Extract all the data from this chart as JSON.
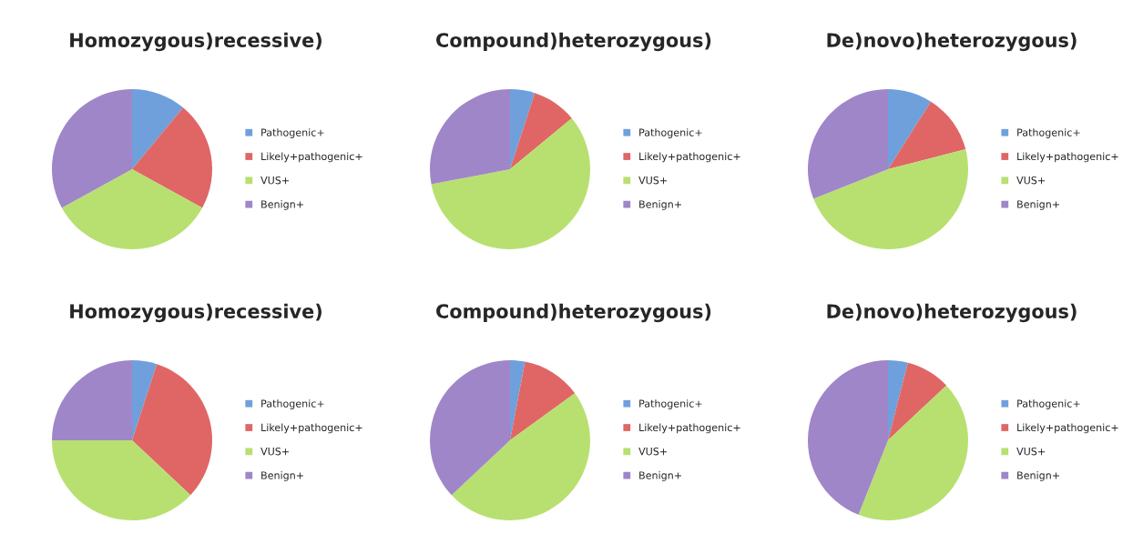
{
  "chart_data": [
    {
      "type": "pie",
      "title": "Homozygous)recessive)",
      "categories": [
        "Pathogenic+",
        "Likely+pathogenic+",
        "VUS+",
        "Benign+"
      ],
      "values": [
        11,
        22,
        34,
        33
      ],
      "colors": [
        "#6fa0dc",
        "#e06666",
        "#b8e070",
        "#9f86c8"
      ],
      "legend": "right"
    },
    {
      "type": "pie",
      "title": "Compound)heterozygous)",
      "categories": [
        "Pathogenic+",
        "Likely+pathogenic+",
        "VUS+",
        "Benign+"
      ],
      "values": [
        5,
        9,
        58,
        28
      ],
      "colors": [
        "#6fa0dc",
        "#e06666",
        "#b8e070",
        "#9f86c8"
      ],
      "legend": "right"
    },
    {
      "type": "pie",
      "title": "De)novo)heterozygous)",
      "categories": [
        "Pathogenic+",
        "Likely+pathogenic+",
        "VUS+",
        "Benign+"
      ],
      "values": [
        9,
        12,
        48,
        31
      ],
      "colors": [
        "#6fa0dc",
        "#e06666",
        "#b8e070",
        "#9f86c8"
      ],
      "legend": "right"
    },
    {
      "type": "pie",
      "title": "Homozygous)recessive)",
      "categories": [
        "Pathogenic+",
        "Likely+pathogenic+",
        "VUS+",
        "Benign+"
      ],
      "values": [
        5,
        32,
        38,
        25
      ],
      "colors": [
        "#6fa0dc",
        "#e06666",
        "#b8e070",
        "#9f86c8"
      ],
      "legend": "right"
    },
    {
      "type": "pie",
      "title": "Compound)heterozygous)",
      "categories": [
        "Pathogenic+",
        "Likely+pathogenic+",
        "VUS+",
        "Benign+"
      ],
      "values": [
        3,
        12,
        48,
        37
      ],
      "colors": [
        "#6fa0dc",
        "#e06666",
        "#b8e070",
        "#9f86c8"
      ],
      "legend": "right"
    },
    {
      "type": "pie",
      "title": "De)novo)heterozygous)",
      "categories": [
        "Pathogenic+",
        "Likely+pathogenic+",
        "VUS+",
        "Benign+"
      ],
      "values": [
        4,
        9,
        43,
        44
      ],
      "colors": [
        "#6fa0dc",
        "#e06666",
        "#b8e070",
        "#9f86c8"
      ],
      "legend": "right"
    }
  ]
}
